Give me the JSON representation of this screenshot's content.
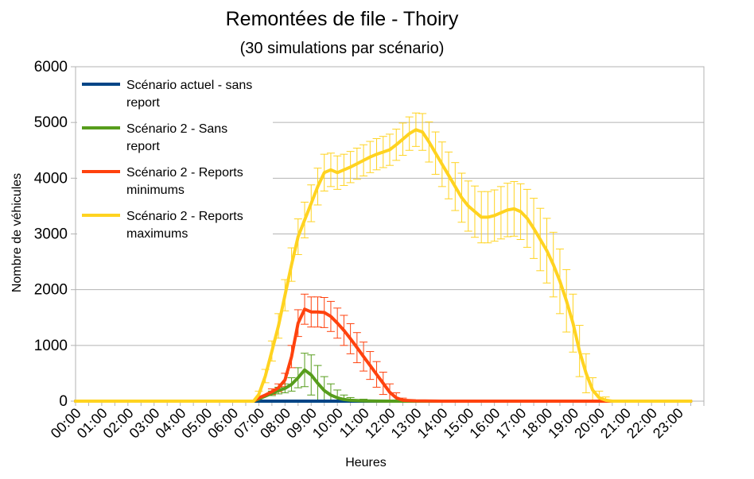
{
  "chart_data": {
    "type": "line",
    "title": "Remontées de file - Thoiry",
    "subtitle": "(30 simulations par scénario)",
    "xlabel": "Heures",
    "ylabel": "Nombre de véhicules",
    "ylim": [
      0,
      6000
    ],
    "yticks": [
      0,
      1000,
      2000,
      3000,
      4000,
      5000,
      6000
    ],
    "grid": true,
    "legend_position": "top-left",
    "x": [
      "00:00",
      "01:00",
      "02:00",
      "03:00",
      "04:00",
      "05:00",
      "06:00",
      "07:00",
      "08:00",
      "09:00",
      "10:00",
      "11:00",
      "12:00",
      "13:00",
      "14:00",
      "15:00",
      "16:00",
      "17:00",
      "18:00",
      "19:00",
      "20:00",
      "21:00",
      "22:00",
      "23:00"
    ],
    "series": [
      {
        "name": "Scénario actuel - sans report",
        "color": "#004586",
        "points": [
          [
            0,
            0
          ],
          [
            7,
            0
          ],
          [
            9,
            0
          ],
          [
            12,
            0
          ],
          [
            23.5,
            0
          ]
        ],
        "error": []
      },
      {
        "name": "Scénario 2 - Sans report",
        "color": "#579d1c",
        "points": [
          [
            0,
            0
          ],
          [
            6.8,
            0
          ],
          [
            7,
            40
          ],
          [
            7.25,
            90
          ],
          [
            7.5,
            140
          ],
          [
            7.75,
            190
          ],
          [
            8,
            230
          ],
          [
            8.25,
            300
          ],
          [
            8.5,
            420
          ],
          [
            8.75,
            560
          ],
          [
            9,
            470
          ],
          [
            9.25,
            320
          ],
          [
            9.5,
            190
          ],
          [
            9.75,
            110
          ],
          [
            10,
            60
          ],
          [
            10.25,
            30
          ],
          [
            10.5,
            15
          ],
          [
            11,
            5
          ],
          [
            11.5,
            2
          ],
          [
            12,
            0
          ],
          [
            23.5,
            0
          ]
        ],
        "error": [
          [
            7.5,
            140,
            40
          ],
          [
            7.75,
            190,
            60
          ],
          [
            8,
            230,
            80
          ],
          [
            8.25,
            300,
            120
          ],
          [
            8.5,
            420,
            180
          ],
          [
            8.75,
            560,
            300
          ],
          [
            9,
            470,
            360
          ],
          [
            9.25,
            320,
            320
          ],
          [
            9.5,
            190,
            250
          ],
          [
            9.75,
            110,
            200
          ],
          [
            10,
            60,
            140
          ],
          [
            10.25,
            30,
            80
          ],
          [
            10.5,
            15,
            50
          ],
          [
            11,
            5,
            30
          ],
          [
            12,
            0,
            20
          ]
        ]
      },
      {
        "name": "Scénario 2 - Reports minimums",
        "color": "#ff420e",
        "points": [
          [
            0,
            0
          ],
          [
            6.8,
            0
          ],
          [
            7,
            60
          ],
          [
            7.25,
            110
          ],
          [
            7.5,
            170
          ],
          [
            7.75,
            240
          ],
          [
            8,
            380
          ],
          [
            8.25,
            800
          ],
          [
            8.5,
            1400
          ],
          [
            8.75,
            1650
          ],
          [
            9,
            1600
          ],
          [
            9.25,
            1600
          ],
          [
            9.5,
            1590
          ],
          [
            9.75,
            1520
          ],
          [
            10,
            1400
          ],
          [
            10.25,
            1270
          ],
          [
            10.5,
            1120
          ],
          [
            10.75,
            960
          ],
          [
            11,
            800
          ],
          [
            11.25,
            640
          ],
          [
            11.5,
            480
          ],
          [
            11.75,
            320
          ],
          [
            12,
            160
          ],
          [
            12.25,
            60
          ],
          [
            12.5,
            15
          ],
          [
            13,
            5
          ],
          [
            14,
            0
          ],
          [
            23.5,
            0
          ]
        ],
        "error": [
          [
            7.5,
            170,
            50
          ],
          [
            7.75,
            240,
            70
          ],
          [
            8,
            380,
            120
          ],
          [
            8.25,
            800,
            200
          ],
          [
            8.5,
            1400,
            240
          ],
          [
            8.75,
            1650,
            270
          ],
          [
            9,
            1600,
            270
          ],
          [
            9.25,
            1600,
            270
          ],
          [
            9.5,
            1590,
            270
          ],
          [
            9.75,
            1520,
            270
          ],
          [
            10,
            1400,
            270
          ],
          [
            10.25,
            1270,
            270
          ],
          [
            10.5,
            1120,
            270
          ],
          [
            10.75,
            960,
            270
          ],
          [
            11,
            800,
            260
          ],
          [
            11.25,
            640,
            250
          ],
          [
            11.5,
            480,
            230
          ],
          [
            11.75,
            320,
            200
          ],
          [
            12,
            160,
            150
          ],
          [
            12.25,
            60,
            90
          ],
          [
            12.5,
            15,
            40
          ]
        ]
      },
      {
        "name": "Scénario 2 - Reports maximums",
        "color": "#ffd320",
        "points": [
          [
            0,
            0
          ],
          [
            6.8,
            0
          ],
          [
            7,
            120
          ],
          [
            7.25,
            450
          ],
          [
            7.5,
            900
          ],
          [
            7.75,
            1350
          ],
          [
            8,
            1900
          ],
          [
            8.25,
            2450
          ],
          [
            8.5,
            2950
          ],
          [
            8.75,
            3250
          ],
          [
            9,
            3550
          ],
          [
            9.25,
            3850
          ],
          [
            9.5,
            4100
          ],
          [
            9.75,
            4150
          ],
          [
            10,
            4100
          ],
          [
            10.25,
            4150
          ],
          [
            10.5,
            4200
          ],
          [
            10.75,
            4260
          ],
          [
            11,
            4320
          ],
          [
            11.25,
            4380
          ],
          [
            11.5,
            4430
          ],
          [
            11.75,
            4470
          ],
          [
            12,
            4510
          ],
          [
            12.25,
            4600
          ],
          [
            12.5,
            4700
          ],
          [
            12.75,
            4800
          ],
          [
            13,
            4870
          ],
          [
            13.25,
            4830
          ],
          [
            13.5,
            4650
          ],
          [
            13.75,
            4450
          ],
          [
            14,
            4250
          ],
          [
            14.25,
            4050
          ],
          [
            14.5,
            3850
          ],
          [
            14.75,
            3650
          ],
          [
            15,
            3500
          ],
          [
            15.25,
            3400
          ],
          [
            15.5,
            3300
          ],
          [
            15.75,
            3300
          ],
          [
            16,
            3330
          ],
          [
            16.25,
            3380
          ],
          [
            16.5,
            3430
          ],
          [
            16.75,
            3450
          ],
          [
            17,
            3400
          ],
          [
            17.25,
            3280
          ],
          [
            17.5,
            3100
          ],
          [
            17.75,
            2900
          ],
          [
            18,
            2700
          ],
          [
            18.25,
            2450
          ],
          [
            18.5,
            2150
          ],
          [
            18.75,
            1800
          ],
          [
            19,
            1400
          ],
          [
            19.25,
            900
          ],
          [
            19.5,
            500
          ],
          [
            19.75,
            200
          ],
          [
            20,
            60
          ],
          [
            20.25,
            15
          ],
          [
            20.5,
            0
          ],
          [
            23.5,
            0
          ]
        ],
        "error": [
          [
            7,
            120,
            60
          ],
          [
            7.25,
            450,
            120
          ],
          [
            7.5,
            900,
            180
          ],
          [
            7.75,
            1350,
            220
          ],
          [
            8,
            1900,
            280
          ],
          [
            8.25,
            2450,
            300
          ],
          [
            8.5,
            2950,
            320
          ],
          [
            8.75,
            3250,
            320
          ],
          [
            9,
            3550,
            330
          ],
          [
            9.25,
            3850,
            330
          ],
          [
            9.5,
            4100,
            330
          ],
          [
            9.75,
            4150,
            300
          ],
          [
            10,
            4100,
            300
          ],
          [
            10.25,
            4150,
            280
          ],
          [
            10.5,
            4200,
            280
          ],
          [
            10.75,
            4260,
            280
          ],
          [
            11,
            4320,
            280
          ],
          [
            11.25,
            4380,
            280
          ],
          [
            11.5,
            4430,
            280
          ],
          [
            11.75,
            4470,
            280
          ],
          [
            12,
            4510,
            280
          ],
          [
            12.25,
            4600,
            280
          ],
          [
            12.5,
            4700,
            290
          ],
          [
            12.75,
            4800,
            300
          ],
          [
            13,
            4870,
            300
          ],
          [
            13.25,
            4830,
            330
          ],
          [
            13.5,
            4650,
            360
          ],
          [
            13.75,
            4450,
            380
          ],
          [
            14,
            4250,
            400
          ],
          [
            14.25,
            4050,
            420
          ],
          [
            14.5,
            3850,
            430
          ],
          [
            14.75,
            3650,
            440
          ],
          [
            15,
            3500,
            450
          ],
          [
            15.25,
            3400,
            460
          ],
          [
            15.5,
            3300,
            460
          ],
          [
            15.75,
            3300,
            460
          ],
          [
            16,
            3330,
            460
          ],
          [
            16.25,
            3380,
            470
          ],
          [
            16.5,
            3430,
            480
          ],
          [
            16.75,
            3450,
            490
          ],
          [
            17,
            3400,
            500
          ],
          [
            17.25,
            3280,
            520
          ],
          [
            17.5,
            3100,
            540
          ],
          [
            17.75,
            2900,
            560
          ],
          [
            18,
            2700,
            580
          ],
          [
            18.25,
            2450,
            580
          ],
          [
            18.5,
            2150,
            580
          ],
          [
            18.75,
            1800,
            560
          ],
          [
            19,
            1400,
            520
          ],
          [
            19.25,
            900,
            460
          ],
          [
            19.5,
            500,
            350
          ],
          [
            19.75,
            200,
            220
          ],
          [
            20,
            60,
            120
          ],
          [
            20.25,
            15,
            60
          ]
        ]
      }
    ]
  }
}
